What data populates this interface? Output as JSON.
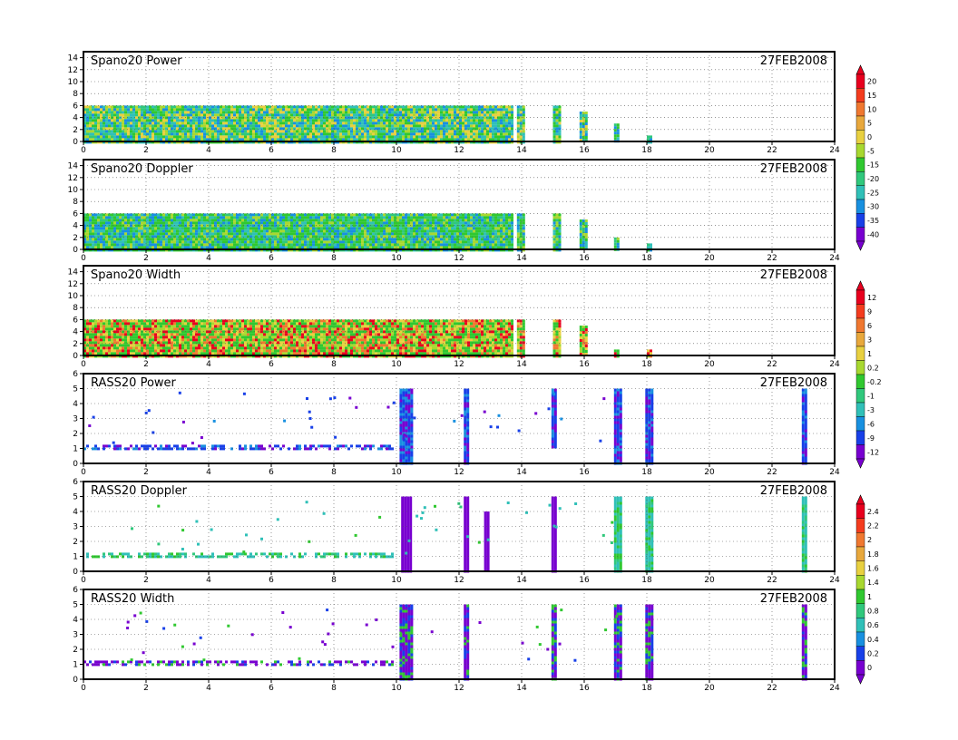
{
  "chart_data": {
    "type": "heatmap",
    "date_label": "27FEB2008",
    "x": {
      "range": [
        0,
        24
      ],
      "ticks": [
        0,
        2,
        4,
        6,
        8,
        10,
        12,
        14,
        16,
        18,
        20,
        22,
        24
      ],
      "tick_labels": [
        "0",
        "2",
        "4",
        "6",
        "8",
        "10",
        "12",
        "14",
        "16",
        "18",
        "20",
        "22",
        "24"
      ]
    },
    "grid": true,
    "colorbars": [
      {
        "name": "power",
        "labels": [
          "20",
          "15",
          "10",
          "5",
          "0",
          "-5",
          "-15",
          "-20",
          "-25",
          "-30",
          "-35",
          "-40"
        ],
        "colors": [
          "#e8001e",
          "#f43c1e",
          "#f07830",
          "#e8a83c",
          "#e8d040",
          "#a8d830",
          "#30c830",
          "#30c87c",
          "#30c0b8",
          "#1890e0",
          "#1840e8",
          "#7800d0"
        ]
      },
      {
        "name": "width-power",
        "labels": [
          "12",
          "9",
          "6",
          "3",
          "1",
          "0.2",
          "-0.2",
          "-1",
          "-3",
          "-6",
          "-9",
          "-12"
        ],
        "colors": [
          "#e8001e",
          "#f43c1e",
          "#f07830",
          "#e8a83c",
          "#e8d040",
          "#a8d830",
          "#30c830",
          "#30c87c",
          "#30c0b8",
          "#1890e0",
          "#1840e8",
          "#7800d0"
        ]
      },
      {
        "name": "width",
        "labels": [
          "2.4",
          "2.2",
          "2",
          "1.8",
          "1.6",
          "1.4",
          "1",
          "0.8",
          "0.6",
          "0.4",
          "0.2",
          "0"
        ],
        "colors": [
          "#e8001e",
          "#f43c1e",
          "#f07830",
          "#e8a83c",
          "#e8d040",
          "#a8d830",
          "#30c830",
          "#30c87c",
          "#30c0b8",
          "#1890e0",
          "#1840e8",
          "#7800d0"
        ]
      }
    ],
    "panels": [
      {
        "title": "Spano20 Power",
        "y_range": [
          0,
          15
        ],
        "y_ticks": [
          0,
          2,
          4,
          6,
          8,
          10,
          12,
          14
        ],
        "y_tick_labels": [
          "0",
          "2",
          "4",
          "6",
          "8",
          "10",
          "12",
          "14"
        ],
        "colorbar": "power",
        "palette": [
          "#30c830",
          "#30c87c",
          "#a8d830",
          "#e8d040",
          "#30c0b8",
          "#1890e0"
        ],
        "bands": [
          {
            "x": [
              0,
              13.7
            ],
            "y": [
              0,
              6
            ],
            "note": "dense"
          },
          {
            "x": [
              13.85,
              14.05
            ],
            "y": [
              0,
              6
            ]
          },
          {
            "x": [
              15.0,
              15.2
            ],
            "y": [
              0,
              6
            ]
          },
          {
            "x": [
              15.85,
              16.05
            ],
            "y": [
              0,
              5
            ]
          },
          {
            "x": [
              16.95,
              17.1
            ],
            "y": [
              0,
              3
            ]
          },
          {
            "x": [
              18.0,
              18.1
            ],
            "y": [
              0,
              1
            ]
          }
        ]
      },
      {
        "title": "Spano20 Doppler",
        "y_range": [
          0,
          15
        ],
        "y_ticks": [
          0,
          2,
          4,
          6,
          8,
          10,
          12,
          14
        ],
        "y_tick_labels": [
          "0",
          "2",
          "4",
          "6",
          "8",
          "10",
          "12",
          "14"
        ],
        "colorbar": "power",
        "palette": [
          "#30c830",
          "#30c87c",
          "#30c0b8",
          "#30c830",
          "#a8d830",
          "#1890e0"
        ],
        "bands": [
          {
            "x": [
              0,
              13.7
            ],
            "y": [
              0,
              6
            ]
          },
          {
            "x": [
              13.85,
              14.05
            ],
            "y": [
              0,
              6
            ]
          },
          {
            "x": [
              15.0,
              15.2
            ],
            "y": [
              0,
              6
            ]
          },
          {
            "x": [
              15.85,
              16.05
            ],
            "y": [
              0,
              5
            ]
          },
          {
            "x": [
              16.95,
              17.1
            ],
            "y": [
              0,
              2
            ]
          },
          {
            "x": [
              18.0,
              18.1
            ],
            "y": [
              0,
              1
            ]
          }
        ]
      },
      {
        "title": "Spano20 Width",
        "y_range": [
          0,
          15
        ],
        "y_ticks": [
          0,
          2,
          4,
          6,
          8,
          10,
          12,
          14
        ],
        "y_tick_labels": [
          "0",
          "2",
          "4",
          "6",
          "8",
          "10",
          "12",
          "14"
        ],
        "colorbar": "width-power",
        "palette": [
          "#30c830",
          "#a8d830",
          "#e8d040",
          "#30c830",
          "#e8001e",
          "#f07830"
        ],
        "bands": [
          {
            "x": [
              0,
              13.7
            ],
            "y": [
              0,
              6
            ]
          },
          {
            "x": [
              13.85,
              14.05
            ],
            "y": [
              0,
              6
            ]
          },
          {
            "x": [
              15.0,
              15.2
            ],
            "y": [
              0,
              6
            ]
          },
          {
            "x": [
              15.85,
              16.05
            ],
            "y": [
              0,
              5
            ]
          },
          {
            "x": [
              16.95,
              17.1
            ],
            "y": [
              0,
              1
            ]
          },
          {
            "x": [
              18.0,
              18.1
            ],
            "y": [
              0,
              1
            ]
          }
        ]
      },
      {
        "title": "RASS20 Power",
        "y_range": [
          0,
          6
        ],
        "y_ticks": [
          0,
          1,
          2,
          3,
          4,
          5,
          6
        ],
        "y_tick_labels": [
          "0",
          "1",
          "2",
          "3",
          "4",
          "5",
          "6"
        ],
        "colorbar": "width-power",
        "palette": [
          "#1840e8",
          "#1840e8",
          "#1890e0",
          "#7800d0"
        ],
        "bands": [
          {
            "x": [
              0,
              9.9
            ],
            "y": [
              0.9,
              1.25
            ],
            "sparse": true
          },
          {
            "x": [
              10.1,
              10.5
            ],
            "y": [
              0,
              5
            ]
          },
          {
            "x": [
              12.15,
              12.3
            ],
            "y": [
              0,
              5
            ]
          },
          {
            "x": [
              14.95,
              15.1
            ],
            "y": [
              1,
              5
            ]
          },
          {
            "x": [
              16.95,
              17.15
            ],
            "y": [
              0,
              5
            ]
          },
          {
            "x": [
              17.95,
              18.15
            ],
            "y": [
              0,
              5
            ]
          },
          {
            "x": [
              22.95,
              23.05
            ],
            "y": [
              0,
              5
            ]
          }
        ]
      },
      {
        "title": "RASS20 Doppler",
        "y_range": [
          0,
          6
        ],
        "y_ticks": [
          0,
          1,
          2,
          3,
          4,
          5,
          6
        ],
        "y_tick_labels": [
          "0",
          "1",
          "2",
          "3",
          "4",
          "5",
          "6"
        ],
        "colorbar": "width",
        "palette": [
          "#30c0b8",
          "#30c0b8",
          "#30c87c",
          "#30c830"
        ],
        "bands": [
          {
            "x": [
              0,
              9.9
            ],
            "y": [
              0.9,
              1.25
            ],
            "sparse": true
          },
          {
            "x": [
              10.15,
              10.45
            ],
            "y": [
              0,
              5
            ],
            "color": "#7800d0"
          },
          {
            "x": [
              12.15,
              12.28
            ],
            "y": [
              0,
              5
            ],
            "color": "#7800d0"
          },
          {
            "x": [
              12.8,
              12.9
            ],
            "y": [
              0,
              4
            ],
            "color": "#7800d0"
          },
          {
            "x": [
              14.95,
              15.08
            ],
            "y": [
              0,
              5
            ],
            "color": "#7800d0"
          },
          {
            "x": [
              16.95,
              17.15
            ],
            "y": [
              0,
              5
            ]
          },
          {
            "x": [
              17.95,
              18.15
            ],
            "y": [
              0,
              5
            ]
          },
          {
            "x": [
              22.95,
              23.05
            ],
            "y": [
              0,
              5
            ]
          }
        ]
      },
      {
        "title": "RASS20 Width",
        "y_range": [
          0,
          6
        ],
        "y_ticks": [
          0,
          1,
          2,
          3,
          4,
          5,
          6
        ],
        "y_tick_labels": [
          "0",
          "1",
          "2",
          "3",
          "4",
          "5",
          "6"
        ],
        "colorbar": "width",
        "palette": [
          "#7800d0",
          "#7800d0",
          "#1840e8",
          "#30c830"
        ],
        "bands": [
          {
            "x": [
              0,
              9.9
            ],
            "y": [
              0.9,
              1.25
            ],
            "sparse": true
          },
          {
            "x": [
              10.1,
              10.5
            ],
            "y": [
              0,
              5
            ]
          },
          {
            "x": [
              12.15,
              12.3
            ],
            "y": [
              0,
              5
            ]
          },
          {
            "x": [
              14.95,
              15.1
            ],
            "y": [
              0,
              5
            ]
          },
          {
            "x": [
              16.95,
              17.15
            ],
            "y": [
              0,
              5
            ]
          },
          {
            "x": [
              17.95,
              18.15
            ],
            "y": [
              0,
              5
            ]
          },
          {
            "x": [
              22.95,
              23.05
            ],
            "y": [
              0,
              5
            ]
          }
        ]
      }
    ]
  }
}
